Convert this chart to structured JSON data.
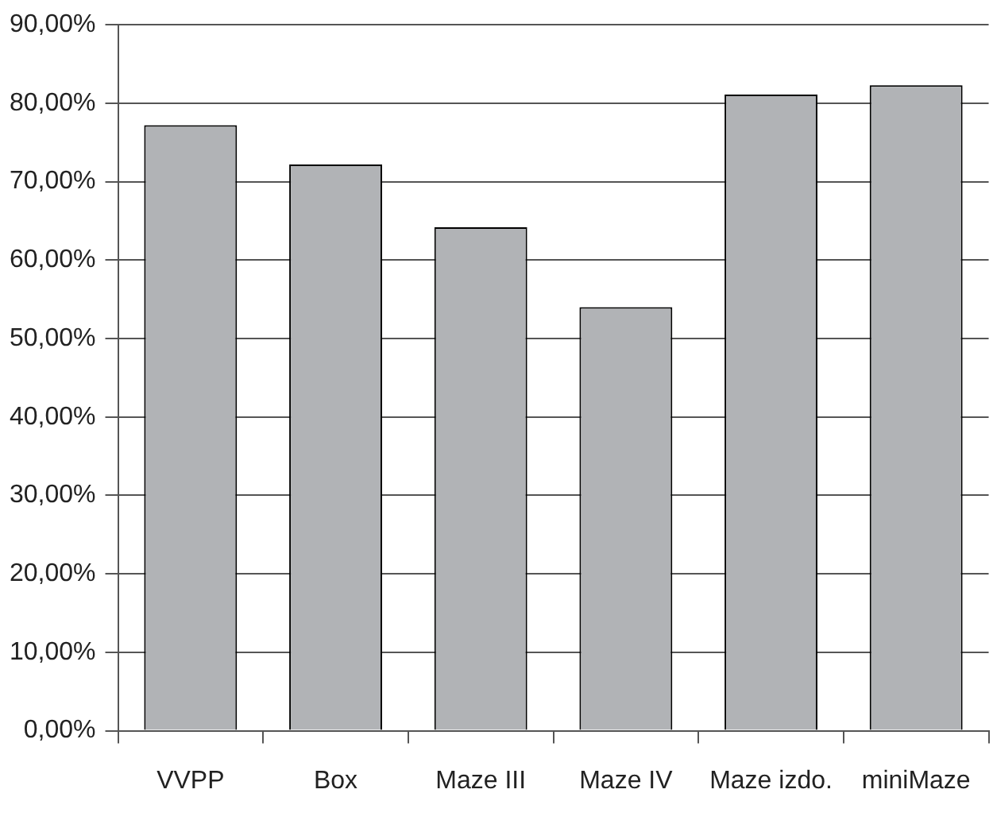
{
  "chart_data": {
    "type": "bar",
    "categories": [
      "VVPP",
      "Box",
      "Maze III",
      "Maze IV",
      "Maze izdo.",
      "miniMaze"
    ],
    "values": [
      77.2,
      72.2,
      64.2,
      54.0,
      81.1,
      82.3
    ],
    "color": "#b1b3b6",
    "ylim": [
      0,
      90
    ],
    "yticks": [
      {
        "value": 0,
        "label": "0,00%"
      },
      {
        "value": 10,
        "label": "10,00%"
      },
      {
        "value": 20,
        "label": "20,00%"
      },
      {
        "value": 30,
        "label": "30,00%"
      },
      {
        "value": 40,
        "label": "40,00%"
      },
      {
        "value": 50,
        "label": "50,00%"
      },
      {
        "value": 60,
        "label": "60,00%"
      },
      {
        "value": 70,
        "label": "70,00%"
      },
      {
        "value": 80,
        "label": "80,00%"
      },
      {
        "value": 90,
        "label": "90,00%"
      }
    ],
    "grid": "y"
  }
}
